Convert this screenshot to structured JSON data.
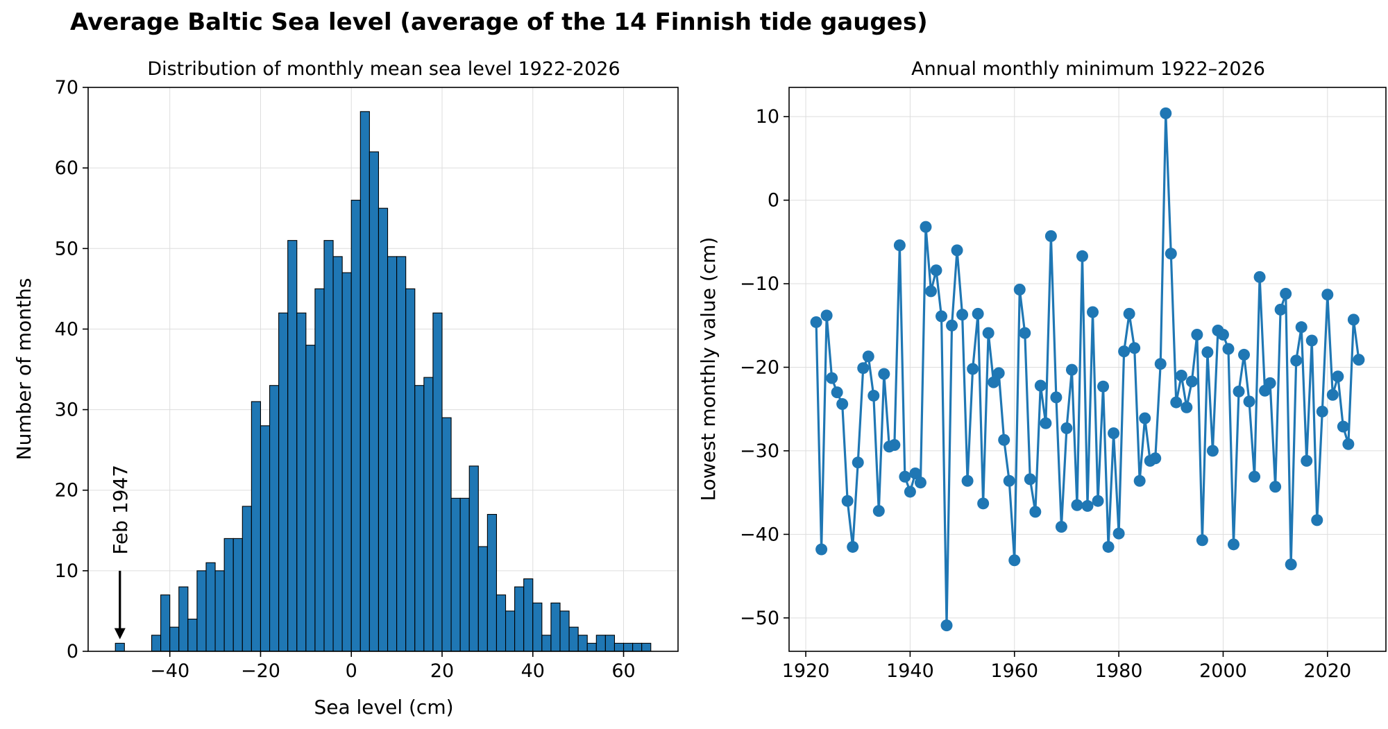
{
  "figure_title": "Average Baltic Sea level (average of the 14 Finnish tide gauges)",
  "colors": {
    "bar_fill": "#1f77b4",
    "bar_edge": "#000000",
    "line": "#1f77b4",
    "grid": "#dddddd",
    "axis": "#000000"
  },
  "chart_data": [
    {
      "type": "bar",
      "title": "Distribution of monthly mean sea level 1922-2026",
      "xlabel": "Sea level (cm)",
      "ylabel": "Number of months",
      "xlim": [
        -58,
        72
      ],
      "ylim": [
        0,
        70
      ],
      "xticks": [
        -40,
        -20,
        0,
        20,
        40,
        60
      ],
      "yticks": [
        0,
        10,
        20,
        30,
        40,
        50,
        60,
        70
      ],
      "grid": true,
      "bin_width": 2,
      "bins": [
        {
          "x0": -52,
          "count": 1
        },
        {
          "x0": -44,
          "count": 2
        },
        {
          "x0": -42,
          "count": 7
        },
        {
          "x0": -40,
          "count": 3
        },
        {
          "x0": -38,
          "count": 8
        },
        {
          "x0": -36,
          "count": 4
        },
        {
          "x0": -34,
          "count": 10
        },
        {
          "x0": -32,
          "count": 11
        },
        {
          "x0": -30,
          "count": 10
        },
        {
          "x0": -28,
          "count": 14
        },
        {
          "x0": -26,
          "count": 14
        },
        {
          "x0": -24,
          "count": 18
        },
        {
          "x0": -22,
          "count": 31
        },
        {
          "x0": -20,
          "count": 28
        },
        {
          "x0": -18,
          "count": 33
        },
        {
          "x0": -16,
          "count": 42
        },
        {
          "x0": -14,
          "count": 51
        },
        {
          "x0": -12,
          "count": 42
        },
        {
          "x0": -10,
          "count": 38
        },
        {
          "x0": -8,
          "count": 45
        },
        {
          "x0": -6,
          "count": 51
        },
        {
          "x0": -4,
          "count": 49
        },
        {
          "x0": -2,
          "count": 47
        },
        {
          "x0": 0,
          "count": 56
        },
        {
          "x0": 2,
          "count": 67
        },
        {
          "x0": 4,
          "count": 62
        },
        {
          "x0": 6,
          "count": 55
        },
        {
          "x0": 8,
          "count": 49
        },
        {
          "x0": 10,
          "count": 49
        },
        {
          "x0": 12,
          "count": 45
        },
        {
          "x0": 14,
          "count": 33
        },
        {
          "x0": 16,
          "count": 34
        },
        {
          "x0": 18,
          "count": 42
        },
        {
          "x0": 20,
          "count": 29
        },
        {
          "x0": 22,
          "count": 19
        },
        {
          "x0": 24,
          "count": 19
        },
        {
          "x0": 26,
          "count": 23
        },
        {
          "x0": 28,
          "count": 13
        },
        {
          "x0": 30,
          "count": 17
        },
        {
          "x0": 32,
          "count": 7
        },
        {
          "x0": 34,
          "count": 5
        },
        {
          "x0": 36,
          "count": 8
        },
        {
          "x0": 38,
          "count": 9
        },
        {
          "x0": 40,
          "count": 6
        },
        {
          "x0": 42,
          "count": 2
        },
        {
          "x0": 44,
          "count": 6
        },
        {
          "x0": 46,
          "count": 5
        },
        {
          "x0": 48,
          "count": 3
        },
        {
          "x0": 50,
          "count": 2
        },
        {
          "x0": 52,
          "count": 1
        },
        {
          "x0": 54,
          "count": 2
        },
        {
          "x0": 56,
          "count": 2
        },
        {
          "x0": 58,
          "count": 1
        },
        {
          "x0": 60,
          "count": 1
        },
        {
          "x0": 62,
          "count": 1
        },
        {
          "x0": 64,
          "count": 1
        }
      ],
      "annotation": {
        "text": "Feb 1947",
        "x": -51,
        "text_y": 12,
        "arrow_from_y": 10,
        "arrow_to_y": 1.5
      }
    },
    {
      "type": "line",
      "title": "Annual monthly minimum 1922–2026",
      "xlabel": "",
      "ylabel": "Lowest monthly value (cm)",
      "xlim": [
        1916.8,
        2031.2
      ],
      "ylim": [
        -54,
        13.5
      ],
      "xticks": [
        1920,
        1940,
        1960,
        1980,
        2000,
        2020
      ],
      "yticks": [
        10,
        0,
        -10,
        -20,
        -30,
        -40,
        -50
      ],
      "grid": true,
      "markers": true,
      "x": [
        1922,
        1923,
        1924,
        1925,
        1926,
        1927,
        1928,
        1929,
        1930,
        1931,
        1932,
        1933,
        1934,
        1935,
        1936,
        1937,
        1938,
        1939,
        1940,
        1941,
        1942,
        1943,
        1944,
        1945,
        1946,
        1947,
        1948,
        1949,
        1950,
        1951,
        1952,
        1953,
        1954,
        1955,
        1956,
        1957,
        1958,
        1959,
        1960,
        1961,
        1962,
        1963,
        1964,
        1965,
        1966,
        1967,
        1968,
        1969,
        1970,
        1971,
        1972,
        1973,
        1974,
        1975,
        1976,
        1977,
        1978,
        1979,
        1980,
        1981,
        1982,
        1983,
        1984,
        1985,
        1986,
        1987,
        1988,
        1989,
        1990,
        1991,
        1992,
        1993,
        1994,
        1995,
        1996,
        1997,
        1998,
        1999,
        2000,
        2001,
        2002,
        2003,
        2004,
        2005,
        2006,
        2007,
        2008,
        2009,
        2010,
        2011,
        2012,
        2013,
        2014,
        2015,
        2016,
        2017,
        2018,
        2019,
        2020,
        2021,
        2022,
        2023,
        2024,
        2025,
        2026
      ],
      "y": [
        -14.6,
        -41.8,
        -13.8,
        -21.3,
        -23.0,
        -24.4,
        -36.0,
        -41.5,
        -31.4,
        -20.1,
        -18.7,
        -23.4,
        -37.2,
        -20.8,
        -29.5,
        -29.3,
        -5.4,
        -33.1,
        -34.9,
        -32.7,
        -33.8,
        -3.2,
        -10.9,
        -8.4,
        -13.9,
        -50.9,
        -15.0,
        -6.0,
        -13.7,
        -33.6,
        -20.2,
        -13.6,
        -36.3,
        -15.9,
        -21.8,
        -20.7,
        -28.7,
        -33.6,
        -43.1,
        -10.7,
        -15.9,
        -33.4,
        -37.3,
        -22.2,
        -26.7,
        -4.3,
        -23.6,
        -39.1,
        -27.3,
        -20.3,
        -36.5,
        -6.7,
        -36.6,
        -13.4,
        -36.0,
        -22.3,
        -41.5,
        -27.9,
        -39.9,
        -18.1,
        -13.6,
        -17.7,
        -33.6,
        -26.1,
        -31.2,
        -30.9,
        -19.6,
        10.4,
        -6.4,
        -24.2,
        -21.0,
        -24.8,
        -21.7,
        -16.1,
        -40.7,
        -18.2,
        -30.0,
        -15.6,
        -16.1,
        -17.8,
        -41.2,
        -22.9,
        -18.5,
        -24.1,
        -33.1,
        -9.2,
        -22.8,
        -21.9,
        -34.3,
        -13.1,
        -11.2,
        -43.6,
        -19.2,
        -15.2,
        -31.2,
        -16.8,
        -38.3,
        -25.3,
        -11.3,
        -23.3,
        -21.1,
        -27.1,
        -29.2,
        -14.3,
        -19.1
      ]
    }
  ]
}
